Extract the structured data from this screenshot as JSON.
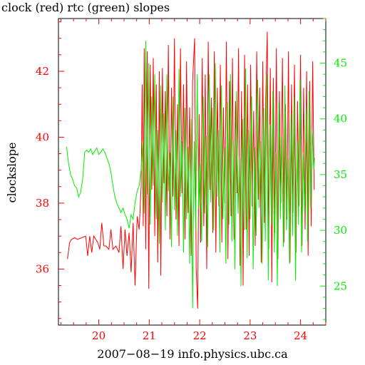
{
  "chart_data": {
    "type": "line",
    "title": "clock (red) rtc (green) slopes",
    "xlabel": "2007−08−19 info.physics.ubc.ca",
    "ylabel": "clockslope",
    "xlim": [
      19.2,
      24.5
    ],
    "ylim_left": [
      34.3,
      43.6
    ],
    "ylim_right": [
      21.5,
      49.0
    ],
    "x_ticks": [
      20,
      21,
      22,
      23,
      24
    ],
    "y_ticks_left": [
      36,
      38,
      40,
      42
    ],
    "y_ticks_right": [
      25,
      30,
      35,
      40,
      45
    ],
    "grid": false,
    "colors": {
      "clock": "#ff0000",
      "rtc": "#00ee00",
      "axes": "#000000"
    },
    "series": [
      {
        "name": "clock",
        "axis": "left",
        "color": "#ff0000",
        "points": [
          [
            19.38,
            36.3
          ],
          [
            19.42,
            36.8
          ],
          [
            19.46,
            36.9
          ],
          [
            19.52,
            36.95
          ],
          [
            19.58,
            36.9
          ],
          [
            19.66,
            36.95
          ],
          [
            19.74,
            37.0
          ],
          [
            19.78,
            36.4
          ],
          [
            19.82,
            37.0
          ],
          [
            19.86,
            36.5
          ],
          [
            19.9,
            37.0
          ],
          [
            19.94,
            36.9
          ],
          [
            19.98,
            36.8
          ],
          [
            20.02,
            36.6
          ],
          [
            20.06,
            37.4
          ],
          [
            20.1,
            36.7
          ],
          [
            20.14,
            36.7
          ],
          [
            20.2,
            36.6
          ],
          [
            20.24,
            37.2
          ],
          [
            20.28,
            36.6
          ],
          [
            20.34,
            36.7
          ],
          [
            20.4,
            36.5
          ],
          [
            20.44,
            37.3
          ],
          [
            20.48,
            36.0
          ],
          [
            20.52,
            37.2
          ],
          [
            20.56,
            36.4
          ],
          [
            20.6,
            37.1
          ],
          [
            20.64,
            35.9
          ],
          [
            20.68,
            37.4
          ],
          [
            20.72,
            35.5
          ],
          [
            20.76,
            37.6
          ],
          [
            20.8,
            37.2
          ],
          [
            20.84,
            38.5
          ],
          [
            20.86,
            41.6
          ],
          [
            20.88,
            37.3
          ],
          [
            20.9,
            42.7
          ],
          [
            20.93,
            36.6
          ],
          [
            20.96,
            42.6
          ],
          [
            20.99,
            35.4
          ],
          [
            21.02,
            42.2
          ],
          [
            21.05,
            38.4
          ],
          [
            21.08,
            42.4
          ],
          [
            21.11,
            37.0
          ],
          [
            21.14,
            41.6
          ],
          [
            21.17,
            36.2
          ],
          [
            21.2,
            42.0
          ],
          [
            21.23,
            35.8
          ],
          [
            21.26,
            42.1
          ],
          [
            21.29,
            38.6
          ],
          [
            21.32,
            41.4
          ],
          [
            21.35,
            37.6
          ],
          [
            21.38,
            42.8
          ],
          [
            21.41,
            36.9
          ],
          [
            21.44,
            41.5
          ],
          [
            21.47,
            38.2
          ],
          [
            21.5,
            43.0
          ],
          [
            21.53,
            37.5
          ],
          [
            21.56,
            41.0
          ],
          [
            21.59,
            36.7
          ],
          [
            21.62,
            42.7
          ],
          [
            21.65,
            38.3
          ],
          [
            21.68,
            41.6
          ],
          [
            21.71,
            36.9
          ],
          [
            21.74,
            42.3
          ],
          [
            21.77,
            37.7
          ],
          [
            21.8,
            40.9
          ],
          [
            21.83,
            36.4
          ],
          [
            21.86,
            41.7
          ],
          [
            21.9,
            43.0
          ],
          [
            21.93,
            36.0
          ],
          [
            21.96,
            34.8
          ],
          [
            21.99,
            40.7
          ],
          [
            22.02,
            36.8
          ],
          [
            22.05,
            42.4
          ],
          [
            22.08,
            37.3
          ],
          [
            22.11,
            41.9
          ],
          [
            22.14,
            36.0
          ],
          [
            22.17,
            42.9
          ],
          [
            22.2,
            38.4
          ],
          [
            22.23,
            41.2
          ],
          [
            22.26,
            37.1
          ],
          [
            22.29,
            42.6
          ],
          [
            22.32,
            36.5
          ],
          [
            22.35,
            41.5
          ],
          [
            22.38,
            37.9
          ],
          [
            22.41,
            42.2
          ],
          [
            22.44,
            36.8
          ],
          [
            22.47,
            40.9
          ],
          [
            22.5,
            38.0
          ],
          [
            22.53,
            42.9
          ],
          [
            22.56,
            36.3
          ],
          [
            22.59,
            41.7
          ],
          [
            22.62,
            37.6
          ],
          [
            22.65,
            42.4
          ],
          [
            22.68,
            36.9
          ],
          [
            22.71,
            41.1
          ],
          [
            22.74,
            38.3
          ],
          [
            22.77,
            42.7
          ],
          [
            22.8,
            36.1
          ],
          [
            22.83,
            41.4
          ],
          [
            22.86,
            35.5
          ],
          [
            22.89,
            42.5
          ],
          [
            22.92,
            37.2
          ],
          [
            22.95,
            41.6
          ],
          [
            22.98,
            36.4
          ],
          [
            23.01,
            42.2
          ],
          [
            23.04,
            37.9
          ],
          [
            23.07,
            40.8
          ],
          [
            23.1,
            36.7
          ],
          [
            23.13,
            42.6
          ],
          [
            23.16,
            38.1
          ],
          [
            23.19,
            41.5
          ],
          [
            23.22,
            36.2
          ],
          [
            23.25,
            42.3
          ],
          [
            23.28,
            37.4
          ],
          [
            23.31,
            41.2
          ],
          [
            23.34,
            43.2
          ],
          [
            23.37,
            36.6
          ],
          [
            23.4,
            42.1
          ],
          [
            23.43,
            35.6
          ],
          [
            23.46,
            41.8
          ],
          [
            23.49,
            37.1
          ],
          [
            23.52,
            42.7
          ],
          [
            23.55,
            36.3
          ],
          [
            23.58,
            41.4
          ],
          [
            23.61,
            38.0
          ],
          [
            23.64,
            42.4
          ],
          [
            23.67,
            36.8
          ],
          [
            23.7,
            41.0
          ],
          [
            23.73,
            37.5
          ],
          [
            23.76,
            42.6
          ],
          [
            23.79,
            36.2
          ],
          [
            23.82,
            41.6
          ],
          [
            23.85,
            37.7
          ],
          [
            23.88,
            42.2
          ],
          [
            23.91,
            36.5
          ],
          [
            23.94,
            41.1
          ],
          [
            23.97,
            37.9
          ],
          [
            24.0,
            42.5
          ],
          [
            24.03,
            36.7
          ],
          [
            24.06,
            41.5
          ],
          [
            24.09,
            37.2
          ],
          [
            24.12,
            42.0
          ],
          [
            24.15,
            36.4
          ],
          [
            24.18,
            41.7
          ],
          [
            24.21,
            37.3
          ],
          [
            24.24,
            42.3
          ],
          [
            24.27,
            38.4
          ]
        ]
      },
      {
        "name": "rtc",
        "axis": "right",
        "color": "#00ee00",
        "points": [
          [
            19.36,
            37.5
          ],
          [
            19.4,
            36.0
          ],
          [
            19.44,
            35.0
          ],
          [
            19.48,
            34.6
          ],
          [
            19.52,
            34.0
          ],
          [
            19.56,
            33.8
          ],
          [
            19.6,
            33.0
          ],
          [
            19.64,
            33.4
          ],
          [
            19.68,
            34.6
          ],
          [
            19.72,
            37.0
          ],
          [
            19.76,
            37.2
          ],
          [
            19.8,
            37.0
          ],
          [
            19.84,
            37.3
          ],
          [
            19.88,
            36.8
          ],
          [
            19.92,
            37.1
          ],
          [
            19.96,
            37.4
          ],
          [
            20.0,
            36.8
          ],
          [
            20.04,
            37.0
          ],
          [
            20.08,
            37.3
          ],
          [
            20.12,
            37.0
          ],
          [
            20.16,
            36.5
          ],
          [
            20.2,
            36.0
          ],
          [
            20.24,
            35.2
          ],
          [
            20.28,
            34.0
          ],
          [
            20.32,
            33.0
          ],
          [
            20.36,
            32.4
          ],
          [
            20.4,
            32.0
          ],
          [
            20.44,
            31.6
          ],
          [
            20.48,
            32.0
          ],
          [
            20.52,
            31.4
          ],
          [
            20.56,
            31.0
          ],
          [
            20.6,
            30.2
          ],
          [
            20.64,
            31.4
          ],
          [
            20.68,
            31.0
          ],
          [
            20.72,
            32.5
          ],
          [
            20.76,
            33.5
          ],
          [
            20.8,
            34.0
          ],
          [
            20.84,
            35.5
          ],
          [
            20.87,
            38.0
          ],
          [
            20.9,
            31.5
          ],
          [
            20.93,
            47.0
          ],
          [
            20.96,
            33.2
          ],
          [
            20.99,
            45.0
          ],
          [
            21.02,
            30.5
          ],
          [
            21.05,
            42.0
          ],
          [
            21.08,
            34.0
          ],
          [
            21.11,
            44.0
          ],
          [
            21.14,
            31.0
          ],
          [
            21.17,
            39.0
          ],
          [
            21.2,
            28.8
          ],
          [
            21.23,
            43.0
          ],
          [
            21.26,
            32.5
          ],
          [
            21.29,
            40.5
          ],
          [
            21.32,
            30.0
          ],
          [
            21.35,
            44.0
          ],
          [
            21.38,
            33.5
          ],
          [
            21.41,
            37.0
          ],
          [
            21.44,
            28.5
          ],
          [
            21.47,
            42.0
          ],
          [
            21.5,
            31.8
          ],
          [
            21.53,
            39.0
          ],
          [
            21.56,
            29.5
          ],
          [
            21.59,
            44.5
          ],
          [
            21.62,
            33.0
          ],
          [
            21.65,
            38.0
          ],
          [
            21.68,
            28.0
          ],
          [
            21.71,
            41.0
          ],
          [
            21.74,
            31.0
          ],
          [
            21.77,
            37.5
          ],
          [
            21.8,
            27.0
          ],
          [
            21.83,
            40.0
          ],
          [
            21.86,
            23.0
          ],
          [
            21.89,
            38.0
          ],
          [
            21.92,
            30.0
          ],
          [
            21.95,
            44.0
          ],
          [
            21.98,
            32.0
          ],
          [
            22.01,
            36.0
          ],
          [
            22.04,
            29.0
          ],
          [
            22.07,
            42.0
          ],
          [
            22.1,
            31.5
          ],
          [
            22.13,
            38.5
          ],
          [
            22.16,
            28.5
          ],
          [
            22.19,
            44.0
          ],
          [
            22.22,
            32.5
          ],
          [
            22.25,
            41.0
          ],
          [
            22.28,
            30.0
          ],
          [
            22.31,
            45.0
          ],
          [
            22.34,
            33.0
          ],
          [
            22.37,
            39.0
          ],
          [
            22.4,
            28.0
          ],
          [
            22.43,
            43.0
          ],
          [
            22.46,
            31.0
          ],
          [
            22.49,
            37.5
          ],
          [
            22.52,
            27.0
          ],
          [
            22.55,
            41.5
          ],
          [
            22.58,
            30.5
          ],
          [
            22.61,
            44.0
          ],
          [
            22.64,
            29.0
          ],
          [
            22.67,
            38.0
          ],
          [
            22.7,
            26.5
          ],
          [
            22.73,
            42.5
          ],
          [
            22.76,
            31.5
          ],
          [
            22.79,
            36.5
          ],
          [
            22.82,
            25.0
          ],
          [
            22.85,
            40.0
          ],
          [
            22.88,
            30.0
          ],
          [
            22.91,
            44.5
          ],
          [
            22.94,
            27.5
          ],
          [
            22.97,
            39.0
          ],
          [
            23.0,
            31.0
          ],
          [
            23.03,
            42.0
          ],
          [
            23.06,
            26.5
          ],
          [
            23.09,
            37.5
          ],
          [
            23.12,
            29.5
          ],
          [
            23.15,
            43.5
          ],
          [
            23.18,
            32.0
          ],
          [
            23.21,
            38.0
          ],
          [
            23.24,
            27.0
          ],
          [
            23.27,
            41.0
          ],
          [
            23.3,
            29.0
          ],
          [
            23.33,
            44.0
          ],
          [
            23.36,
            25.5
          ],
          [
            23.39,
            39.5
          ],
          [
            23.42,
            30.5
          ],
          [
            23.45,
            42.5
          ],
          [
            23.48,
            28.0
          ],
          [
            23.51,
            37.0
          ],
          [
            23.54,
            25.0
          ],
          [
            23.57,
            41.5
          ],
          [
            23.6,
            31.0
          ],
          [
            23.63,
            38.5
          ],
          [
            23.66,
            28.5
          ],
          [
            23.69,
            43.0
          ],
          [
            23.72,
            30.0
          ],
          [
            23.75,
            36.5
          ],
          [
            23.78,
            27.0
          ],
          [
            23.81,
            40.5
          ],
          [
            23.84,
            29.5
          ],
          [
            23.87,
            42.0
          ],
          [
            23.9,
            25.5
          ],
          [
            23.93,
            38.0
          ],
          [
            23.96,
            30.5
          ],
          [
            23.99,
            43.5
          ],
          [
            24.02,
            28.0
          ],
          [
            24.05,
            37.0
          ],
          [
            24.08,
            31.5
          ],
          [
            24.11,
            41.0
          ],
          [
            24.14,
            29.0
          ],
          [
            24.17,
            42.5
          ],
          [
            24.2,
            32.0
          ],
          [
            24.23,
            39.0
          ],
          [
            24.26,
            35.5
          ],
          [
            24.28,
            36.5
          ]
        ]
      }
    ]
  }
}
